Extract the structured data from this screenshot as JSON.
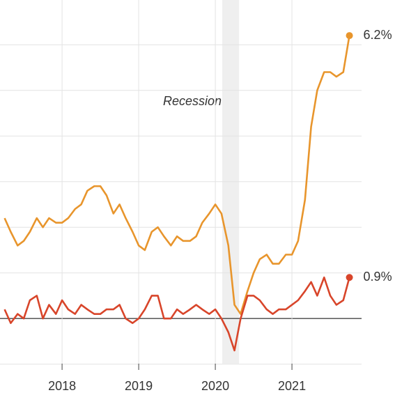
{
  "chart_data": {
    "type": "line",
    "annotations": [
      {
        "text": "Recession",
        "xspan": [
          2020.09,
          2020.31
        ]
      }
    ],
    "x": [
      2017.25,
      2017.33,
      2017.42,
      2017.5,
      2017.58,
      2017.67,
      2017.75,
      2017.83,
      2017.92,
      2018.0,
      2018.08,
      2018.17,
      2018.25,
      2018.33,
      2018.42,
      2018.5,
      2018.58,
      2018.67,
      2018.75,
      2018.83,
      2018.92,
      2019.0,
      2019.08,
      2019.17,
      2019.25,
      2019.33,
      2019.42,
      2019.5,
      2019.58,
      2019.67,
      2019.75,
      2019.83,
      2019.92,
      2020.0,
      2020.08,
      2020.17,
      2020.25,
      2020.33,
      2020.42,
      2020.5,
      2020.58,
      2020.67,
      2020.75,
      2020.83,
      2020.92,
      2021.0,
      2021.08,
      2021.17,
      2021.25,
      2021.33,
      2021.42,
      2021.5,
      2021.58,
      2021.67,
      2021.75
    ],
    "series": [
      {
        "color": "#e8952c",
        "end_label": "6.2%",
        "values": [
          2.2,
          1.9,
          1.6,
          1.7,
          1.9,
          2.2,
          2.0,
          2.2,
          2.1,
          2.1,
          2.2,
          2.4,
          2.5,
          2.8,
          2.9,
          2.9,
          2.7,
          2.3,
          2.5,
          2.2,
          1.9,
          1.6,
          1.5,
          1.9,
          2.0,
          1.8,
          1.6,
          1.8,
          1.7,
          1.7,
          1.8,
          2.1,
          2.3,
          2.5,
          2.3,
          1.6,
          0.3,
          0.1,
          0.6,
          1.0,
          1.3,
          1.4,
          1.2,
          1.2,
          1.4,
          1.4,
          1.7,
          2.6,
          4.2,
          5.0,
          5.4,
          5.4,
          5.3,
          5.4,
          6.2
        ]
      },
      {
        "color": "#d8452a",
        "end_label": "0.9%",
        "values": [
          0.2,
          -0.1,
          0.1,
          0.0,
          0.4,
          0.5,
          0.0,
          0.3,
          0.1,
          0.4,
          0.2,
          0.1,
          0.3,
          0.2,
          0.1,
          0.1,
          0.2,
          0.2,
          0.3,
          0.0,
          -0.1,
          0.0,
          0.2,
          0.5,
          0.5,
          0.0,
          0.0,
          0.2,
          0.1,
          0.2,
          0.3,
          0.2,
          0.1,
          0.2,
          0.0,
          -0.3,
          -0.7,
          0.0,
          0.5,
          0.5,
          0.4,
          0.2,
          0.1,
          0.2,
          0.2,
          0.3,
          0.4,
          0.6,
          0.8,
          0.5,
          0.9,
          0.5,
          0.3,
          0.4,
          0.9
        ]
      }
    ],
    "xlim": [
      2017.19,
      2022.645
    ],
    "xticks": [
      2017,
      2018,
      2019,
      2020,
      2021
    ],
    "ylim": [
      -2.18,
      6.98
    ],
    "yticks": [
      -1,
      0,
      1,
      2,
      3,
      4,
      5,
      6
    ],
    "grid": true
  }
}
